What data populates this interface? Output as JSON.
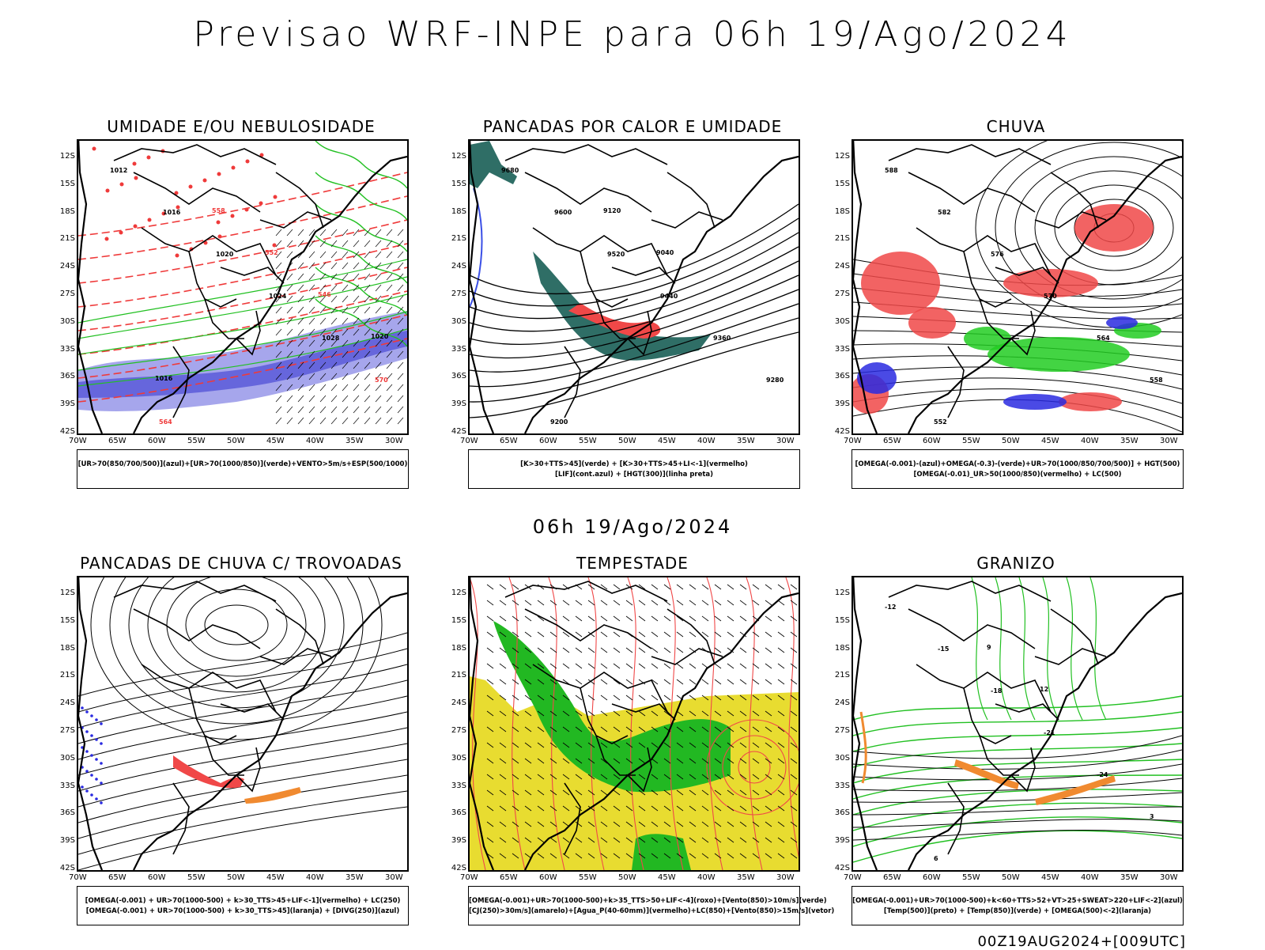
{
  "title": "Previsao WRF-INPE  para 06h 19/Ago/2024",
  "mid_title": "06h 19/Ago/2024",
  "footer": "00Z19AUG2024+[009UTC]",
  "lat_ticks": [
    "12S",
    "15S",
    "18S",
    "21S",
    "24S",
    "27S",
    "30S",
    "33S",
    "36S",
    "39S",
    "42S"
  ],
  "lon_ticks": [
    "70W",
    "65W",
    "60W",
    "55W",
    "50W",
    "45W",
    "40W",
    "35W",
    "30W"
  ],
  "panels": [
    {
      "title": "UMIDADE E/OU NEBULOSIDADE",
      "legend": [
        "[UR>70(850/700/500)](azul)+[UR>70(1000/850)](verde)+VENTO>5m/s+ESP(500/1000)"
      ],
      "labels": [
        "1012",
        "1016",
        "1020",
        "1024",
        "1028",
        "570",
        "564",
        "558",
        "552",
        "546",
        "1020",
        "1016"
      ]
    },
    {
      "title": "PANCADAS POR CALOR E UMIDADE",
      "legend": [
        "[K>30+TTS>45](verde) + [K>30+TTS>45+LI<-1](vermelho)",
        "[LIF](cont.azul) + [HGT(300)](linha preta)"
      ],
      "labels": [
        "9680",
        "9600",
        "9520",
        "9440",
        "9360",
        "9280",
        "9200",
        "9120",
        "9040"
      ]
    },
    {
      "title": "CHUVA",
      "legend": [
        "[OMEGA(-0.001)-(azul)+OMEGA(-0.3)-(verde)+UR>70(1000/850/700/500)] + HGT(500)",
        "[OMEGA(-0.01)_UR>50(1000/850)(vermelho) + LC(500)"
      ],
      "labels": [
        "588",
        "582",
        "576",
        "570",
        "564",
        "558",
        "552"
      ]
    },
    {
      "title": "PANCADAS DE CHUVA C/ TROVOADAS",
      "legend": [
        "[OMEGA(-0.001) + UR>70(1000-500) + k>30_TTS>45+LIF<-1](vermelho) + LC(250)",
        "[OMEGA(-0.001) + UR>70(1000-500) + k>30_TTS>45](laranja) + [DIVG(250)](azul)"
      ],
      "labels": []
    },
    {
      "title": "TEMPESTADE",
      "legend": [
        "[OMEGA(-0.001)+UR>70(1000-500)+k>35_TTS>50+LIF<-4](roxo)+[Vento(850)>10m/s](verde)",
        "[CJ(250)>30m/s](amarelo)+[Agua_P(40-60mm)](vermelho)+LC(850)+[Vento(850)>15m/s](vetor)"
      ],
      "labels": []
    },
    {
      "title": "GRANIZO",
      "legend": [
        "[OMEGA(-0.001)+UR>70(1000-500)+k<60+TTS>52+VT>25+SWEAT>220+LIF<-2](azul)",
        "[Temp(500)](preto) + [Temp(850)](verde) + [OMEGA(500)<-2](laranja)"
      ],
      "labels": [
        "-12",
        "-15",
        "-18",
        "-21",
        "-24",
        "3",
        "6",
        "9",
        "12"
      ]
    }
  ]
}
